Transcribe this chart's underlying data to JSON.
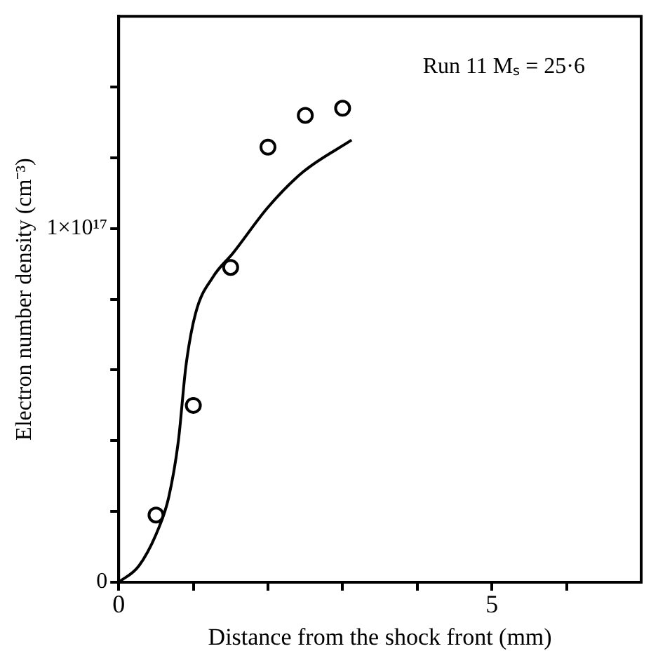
{
  "chart_data": {
    "type": "scatter",
    "xlabel": "Distance from the shock front (mm)",
    "ylabel": "Electron number density (cm⁻³)",
    "annotations": [
      "Run 11 Mₛ = 25·6"
    ],
    "xlim": [
      0,
      7
    ],
    "ylim": [
      0,
      1.6e+17
    ],
    "xticks": [
      0,
      {
        "value": 1,
        "label": null
      },
      {
        "value": 2,
        "label": null
      },
      {
        "value": 3,
        "label": null
      },
      {
        "value": 4,
        "label": null
      },
      5,
      {
        "value": 6,
        "label": null
      }
    ],
    "yticks": [
      0,
      {
        "value": 2e+16,
        "label": null
      },
      {
        "value": 4e+16,
        "label": null
      },
      {
        "value": 6e+16,
        "label": null
      },
      {
        "value": 8e+16,
        "label": null
      },
      {
        "value": 1e+17,
        "label": "1×10¹⁷"
      },
      {
        "value": 1.2e+17,
        "label": null
      },
      {
        "value": 1.4e+17,
        "label": null
      }
    ],
    "grid": false,
    "legend": false,
    "series": [
      {
        "marker": "circle",
        "color": "#000000",
        "x": [
          0.5,
          1.0,
          1.5,
          2.0,
          2.5,
          3.0
        ],
        "values": [
          1.9e+16,
          5e+16,
          8.9e+16,
          1.23e+17,
          1.32e+17,
          1.34e+17
        ]
      },
      {
        "type": "line",
        "marker": "none",
        "color": "#000000",
        "x": [
          0,
          0.27,
          0.53,
          0.67,
          0.8,
          0.9,
          1.03,
          1.27,
          1.53,
          2.0,
          2.47,
          3.12
        ],
        "values": [
          0,
          4600000000000000.0,
          1.5e+16,
          2.4e+16,
          4e+16,
          6.1e+16,
          7.6e+16,
          8.65e+16,
          9.3e+16,
          1.06e+17,
          1.16e+17,
          1.25e+17
        ]
      }
    ]
  }
}
